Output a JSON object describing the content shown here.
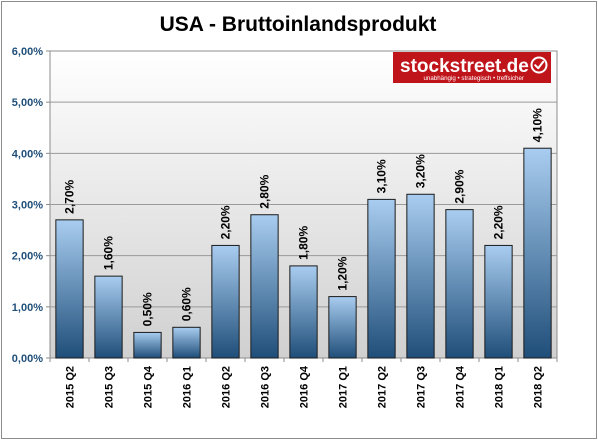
{
  "chart_data": {
    "type": "bar",
    "title": "USA - Bruttoinlandsprodukt",
    "categories": [
      "2015 Q2",
      "2015 Q3",
      "2015 Q4",
      "2016 Q1",
      "2016 Q2",
      "2016 Q3",
      "2016 Q4",
      "2017 Q1",
      "2017 Q2",
      "2017 Q3",
      "2017 Q4",
      "2018 Q1",
      "2018 Q2"
    ],
    "values": [
      2.7,
      1.6,
      0.5,
      0.6,
      2.2,
      2.8,
      1.8,
      1.2,
      3.1,
      3.2,
      2.9,
      2.2,
      4.1
    ],
    "data_labels": [
      "2,70%",
      "1,60%",
      "0,50%",
      "0,60%",
      "2,20%",
      "2,80%",
      "1,80%",
      "1,20%",
      "3,10%",
      "3,20%",
      "2,90%",
      "2,20%",
      "4,10%"
    ],
    "yticks": [
      0,
      1,
      2,
      3,
      4,
      5,
      6
    ],
    "ytick_labels": [
      "0,00%",
      "1,00%",
      "2,00%",
      "3,00%",
      "4,00%",
      "5,00%",
      "6,00%"
    ],
    "ylim": [
      0,
      6
    ],
    "xlabel": "",
    "ylabel": "",
    "grid": true,
    "legend": "none",
    "bar_color_top": "#a9cdf0",
    "bar_color_bottom": "#1f4e79"
  },
  "logo": {
    "name": "stockstreet.de",
    "tagline": "unabhängig • strategisch • treffsicher",
    "color": "#c0141b"
  }
}
